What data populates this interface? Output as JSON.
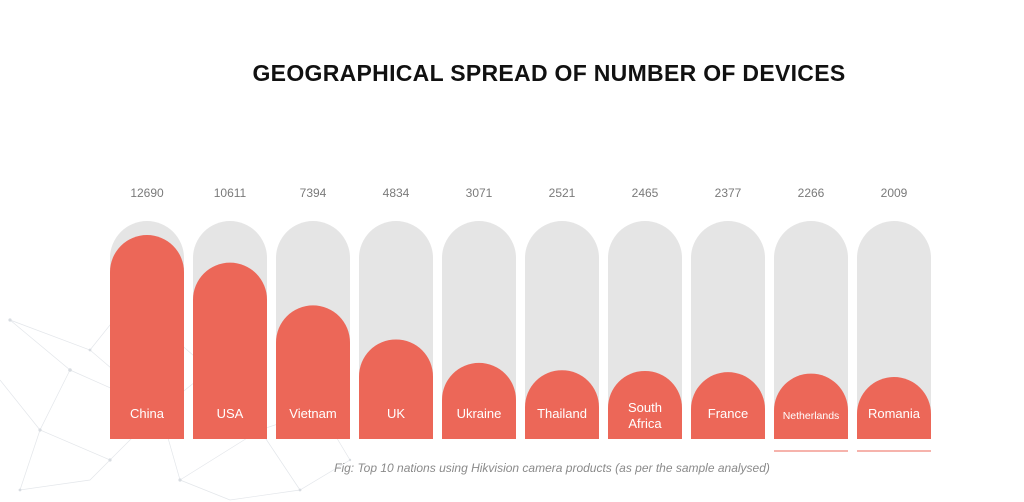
{
  "title": "GEOGRAPHICAL SPREAD OF NUMBER OF DEVICES",
  "caption": "Fig: Top 10 nations using Hikvision camera products (as per the sample analysed)",
  "colors": {
    "bar": "#ec6758",
    "track": "#e5e5e5",
    "value_text": "#7a7a7a",
    "label_text": "#ffffff"
  },
  "chart_data": {
    "type": "bar",
    "categories": [
      "China",
      "USA",
      "Vietnam",
      "UK",
      "Ukraine",
      "Thailand",
      "South Africa",
      "France",
      "Netherlands",
      "Romania"
    ],
    "values": [
      12690,
      10611,
      7394,
      4834,
      3071,
      2521,
      2465,
      2377,
      2266,
      2009
    ],
    "value_labels": [
      "12690",
      "10611",
      "7394",
      "4834",
      "3071",
      "2521",
      "2465",
      "2377",
      "2266",
      "2009"
    ],
    "title": "GEOGRAPHICAL SPREAD OF NUMBER OF DEVICES",
    "grid": false,
    "legend": "none"
  }
}
